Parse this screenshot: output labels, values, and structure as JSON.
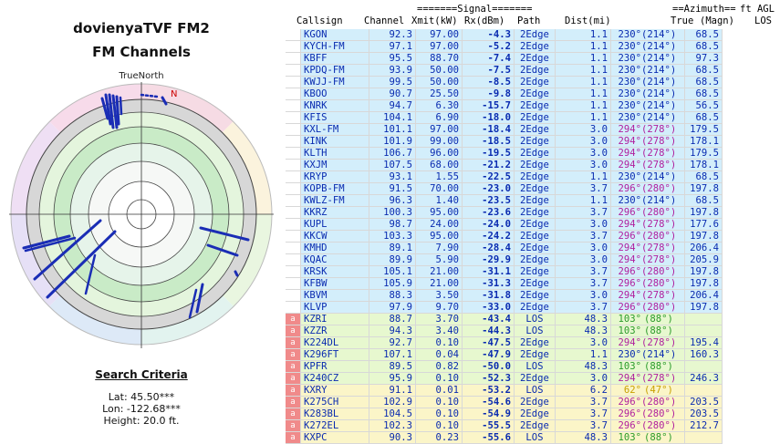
{
  "left": {
    "title": "dovienyaTVF FM2",
    "subtitle": "FM Channels",
    "true_north_label": "TrueNorth",
    "north_marker": "N",
    "criteria_title": "Search Criteria",
    "lat": "Lat: 45.50***",
    "lon": "Lon: -122.68***",
    "height": "Height: 20.0 ft."
  },
  "header": {
    "signal_banner": "=======Signal=======",
    "azimuth_banner": "==Azimuth==",
    "ft_agl": "ft AGL",
    "columns": [
      "Callsign",
      "Channel",
      "Xmit(kW)",
      "Rx(dBm)",
      "Path",
      "Dist(mi)",
      "True",
      "(Magn)",
      "LOS"
    ]
  },
  "colors": {
    "row_blue": "#d3eefb",
    "row_green": "#e7f8cf",
    "row_yellow": "#fbf5c8",
    "indicator_red": "#f08a8a",
    "text_blue": "#0a2bb0",
    "text_purple": "#b01f9e",
    "text_green": "#2b9b2b",
    "text_orange": "#c8a000"
  },
  "rows": [
    {
      "ind": "",
      "callsign": "KGON",
      "channel": "92.3",
      "xmit": "97.00",
      "rx": "-4.3",
      "path": "2Edge",
      "dist": "1.1",
      "true": "230°",
      "magn": "(214°)",
      "los": "68.5",
      "bg": "bl",
      "az": "bl"
    },
    {
      "ind": "",
      "callsign": "KYCH-FM",
      "channel": "97.1",
      "xmit": "97.00",
      "rx": "-5.2",
      "path": "2Edge",
      "dist": "1.1",
      "true": "230°",
      "magn": "(214°)",
      "los": "68.5",
      "bg": "bl",
      "az": "bl"
    },
    {
      "ind": "",
      "callsign": "KBFF",
      "channel": "95.5",
      "xmit": "88.70",
      "rx": "-7.4",
      "path": "2Edge",
      "dist": "1.1",
      "true": "230°",
      "magn": "(214°)",
      "los": "97.3",
      "bg": "bl",
      "az": "bl"
    },
    {
      "ind": "",
      "callsign": "KPDQ-FM",
      "channel": "93.9",
      "xmit": "50.00",
      "rx": "-7.5",
      "path": "2Edge",
      "dist": "1.1",
      "true": "230°",
      "magn": "(214°)",
      "los": "68.5",
      "bg": "bl",
      "az": "bl"
    },
    {
      "ind": "",
      "callsign": "KWJJ-FM",
      "channel": "99.5",
      "xmit": "50.00",
      "rx": "-8.5",
      "path": "2Edge",
      "dist": "1.1",
      "true": "230°",
      "magn": "(214°)",
      "los": "68.5",
      "bg": "bl",
      "az": "bl"
    },
    {
      "ind": "",
      "callsign": "KBOO",
      "channel": "90.7",
      "xmit": "25.50",
      "rx": "-9.8",
      "path": "2Edge",
      "dist": "1.1",
      "true": "230°",
      "magn": "(214°)",
      "los": "68.5",
      "bg": "bl",
      "az": "bl"
    },
    {
      "ind": "",
      "callsign": "KNRK",
      "channel": "94.7",
      "xmit": "6.30",
      "rx": "-15.7",
      "path": "2Edge",
      "dist": "1.1",
      "true": "230°",
      "magn": "(214°)",
      "los": "56.5",
      "bg": "bl",
      "az": "bl"
    },
    {
      "ind": "",
      "callsign": "KFIS",
      "channel": "104.1",
      "xmit": "6.90",
      "rx": "-18.0",
      "path": "2Edge",
      "dist": "1.1",
      "true": "230°",
      "magn": "(214°)",
      "los": "68.5",
      "bg": "bl",
      "az": "bl"
    },
    {
      "ind": "",
      "callsign": "KXL-FM",
      "channel": "101.1",
      "xmit": "97.00",
      "rx": "-18.4",
      "path": "2Edge",
      "dist": "3.0",
      "true": "294°",
      "magn": "(278°)",
      "los": "179.5",
      "bg": "bl",
      "az": "pu"
    },
    {
      "ind": "",
      "callsign": "KINK",
      "channel": "101.9",
      "xmit": "99.00",
      "rx": "-18.5",
      "path": "2Edge",
      "dist": "3.0",
      "true": "294°",
      "magn": "(278°)",
      "los": "178.1",
      "bg": "bl",
      "az": "pu"
    },
    {
      "ind": "",
      "callsign": "KLTH",
      "channel": "106.7",
      "xmit": "96.00",
      "rx": "-19.5",
      "path": "2Edge",
      "dist": "3.0",
      "true": "294°",
      "magn": "(278°)",
      "los": "179.5",
      "bg": "bl",
      "az": "pu"
    },
    {
      "ind": "",
      "callsign": "KXJM",
      "channel": "107.5",
      "xmit": "68.00",
      "rx": "-21.2",
      "path": "2Edge",
      "dist": "3.0",
      "true": "294°",
      "magn": "(278°)",
      "los": "178.1",
      "bg": "bl",
      "az": "pu"
    },
    {
      "ind": "",
      "callsign": "KRYP",
      "channel": "93.1",
      "xmit": "1.55",
      "rx": "-22.5",
      "path": "2Edge",
      "dist": "1.1",
      "true": "230°",
      "magn": "(214°)",
      "los": "68.5",
      "bg": "bl",
      "az": "bl"
    },
    {
      "ind": "",
      "callsign": "KOPB-FM",
      "channel": "91.5",
      "xmit": "70.00",
      "rx": "-23.0",
      "path": "2Edge",
      "dist": "3.7",
      "true": "296°",
      "magn": "(280°)",
      "los": "197.8",
      "bg": "bl",
      "az": "pu"
    },
    {
      "ind": "",
      "callsign": "KWLZ-FM",
      "channel": "96.3",
      "xmit": "1.40",
      "rx": "-23.5",
      "path": "2Edge",
      "dist": "1.1",
      "true": "230°",
      "magn": "(214°)",
      "los": "68.5",
      "bg": "bl",
      "az": "bl"
    },
    {
      "ind": "",
      "callsign": "KKRZ",
      "channel": "100.3",
      "xmit": "95.00",
      "rx": "-23.6",
      "path": "2Edge",
      "dist": "3.7",
      "true": "296°",
      "magn": "(280°)",
      "los": "197.8",
      "bg": "bl",
      "az": "pu"
    },
    {
      "ind": "",
      "callsign": "KUPL",
      "channel": "98.7",
      "xmit": "24.00",
      "rx": "-24.0",
      "path": "2Edge",
      "dist": "3.0",
      "true": "294°",
      "magn": "(278°)",
      "los": "177.6",
      "bg": "bl",
      "az": "pu"
    },
    {
      "ind": "",
      "callsign": "KKCW",
      "channel": "103.3",
      "xmit": "95.00",
      "rx": "-24.2",
      "path": "2Edge",
      "dist": "3.7",
      "true": "296°",
      "magn": "(280°)",
      "los": "197.8",
      "bg": "bl",
      "az": "pu"
    },
    {
      "ind": "",
      "callsign": "KMHD",
      "channel": "89.1",
      "xmit": "7.90",
      "rx": "-28.4",
      "path": "2Edge",
      "dist": "3.0",
      "true": "294°",
      "magn": "(278°)",
      "los": "206.4",
      "bg": "bl",
      "az": "pu"
    },
    {
      "ind": "",
      "callsign": "KQAC",
      "channel": "89.9",
      "xmit": "5.90",
      "rx": "-29.9",
      "path": "2Edge",
      "dist": "3.0",
      "true": "294°",
      "magn": "(278°)",
      "los": "205.9",
      "bg": "bl",
      "az": "pu"
    },
    {
      "ind": "",
      "callsign": "KRSK",
      "channel": "105.1",
      "xmit": "21.00",
      "rx": "-31.1",
      "path": "2Edge",
      "dist": "3.7",
      "true": "296°",
      "magn": "(280°)",
      "los": "197.8",
      "bg": "bl",
      "az": "pu"
    },
    {
      "ind": "",
      "callsign": "KFBW",
      "channel": "105.9",
      "xmit": "21.00",
      "rx": "-31.3",
      "path": "2Edge",
      "dist": "3.7",
      "true": "296°",
      "magn": "(280°)",
      "los": "197.8",
      "bg": "bl",
      "az": "pu"
    },
    {
      "ind": "",
      "callsign": "KBVM",
      "channel": "88.3",
      "xmit": "3.50",
      "rx": "-31.8",
      "path": "2Edge",
      "dist": "3.0",
      "true": "294°",
      "magn": "(278°)",
      "los": "206.4",
      "bg": "bl",
      "az": "pu"
    },
    {
      "ind": "",
      "callsign": "KLVP",
      "channel": "97.9",
      "xmit": "9.70",
      "rx": "-33.0",
      "path": "2Edge",
      "dist": "3.7",
      "true": "296°",
      "magn": "(280°)",
      "los": "197.8",
      "bg": "bl",
      "az": "pu"
    },
    {
      "ind": "a",
      "callsign": "KZRI",
      "channel": "88.7",
      "xmit": "3.70",
      "rx": "-43.4",
      "path": "LOS",
      "dist": "48.3",
      "true": "103°",
      "magn": "(88°)",
      "los": "",
      "bg": "gr",
      "az": "gr"
    },
    {
      "ind": "a",
      "callsign": "KZZR",
      "channel": "94.3",
      "xmit": "3.40",
      "rx": "-44.3",
      "path": "LOS",
      "dist": "48.3",
      "true": "103°",
      "magn": "(88°)",
      "los": "",
      "bg": "gr",
      "az": "gr"
    },
    {
      "ind": "a",
      "callsign": "K224DL",
      "channel": "92.7",
      "xmit": "0.10",
      "rx": "-47.5",
      "path": "2Edge",
      "dist": "3.0",
      "true": "294°",
      "magn": "(278°)",
      "los": "195.4",
      "bg": "gr",
      "az": "pu"
    },
    {
      "ind": "a",
      "callsign": "K296FT",
      "channel": "107.1",
      "xmit": "0.04",
      "rx": "-47.9",
      "path": "2Edge",
      "dist": "1.1",
      "true": "230°",
      "magn": "(214°)",
      "los": "160.3",
      "bg": "gr",
      "az": "bl"
    },
    {
      "ind": "a",
      "callsign": "KPFR",
      "channel": "89.5",
      "xmit": "0.82",
      "rx": "-50.0",
      "path": "LOS",
      "dist": "48.3",
      "true": "103°",
      "magn": "(88°)",
      "los": "",
      "bg": "gr",
      "az": "gr"
    },
    {
      "ind": "a",
      "callsign": "K240CZ",
      "channel": "95.9",
      "xmit": "0.10",
      "rx": "-52.3",
      "path": "2Edge",
      "dist": "3.0",
      "true": "294°",
      "magn": "(278°)",
      "los": "246.3",
      "bg": "gr",
      "az": "pu"
    },
    {
      "ind": "a",
      "callsign": "KXRY",
      "channel": "91.1",
      "xmit": "0.01",
      "rx": "-53.2",
      "path": "LOS",
      "dist": "6.2",
      "true": "62°",
      "magn": "(47°)",
      "los": "",
      "bg": "yl",
      "az": "or"
    },
    {
      "ind": "a",
      "callsign": "K275CH",
      "channel": "102.9",
      "xmit": "0.10",
      "rx": "-54.6",
      "path": "2Edge",
      "dist": "3.7",
      "true": "296°",
      "magn": "(280°)",
      "los": "203.5",
      "bg": "yl",
      "az": "pu"
    },
    {
      "ind": "a",
      "callsign": "K283BL",
      "channel": "104.5",
      "xmit": "0.10",
      "rx": "-54.9",
      "path": "2Edge",
      "dist": "3.7",
      "true": "296°",
      "magn": "(280°)",
      "los": "203.5",
      "bg": "yl",
      "az": "pu"
    },
    {
      "ind": "a",
      "callsign": "K272EL",
      "channel": "102.3",
      "xmit": "0.10",
      "rx": "-55.5",
      "path": "2Edge",
      "dist": "3.7",
      "true": "296°",
      "magn": "(280°)",
      "los": "212.7",
      "bg": "yl",
      "az": "pu"
    },
    {
      "ind": "a",
      "callsign": "KXPC",
      "channel": "90.3",
      "xmit": "0.23",
      "rx": "-55.6",
      "path": "LOS",
      "dist": "48.3",
      "true": "103°",
      "magn": "(88°)",
      "los": "",
      "bg": "yl",
      "az": "gr"
    }
  ]
}
